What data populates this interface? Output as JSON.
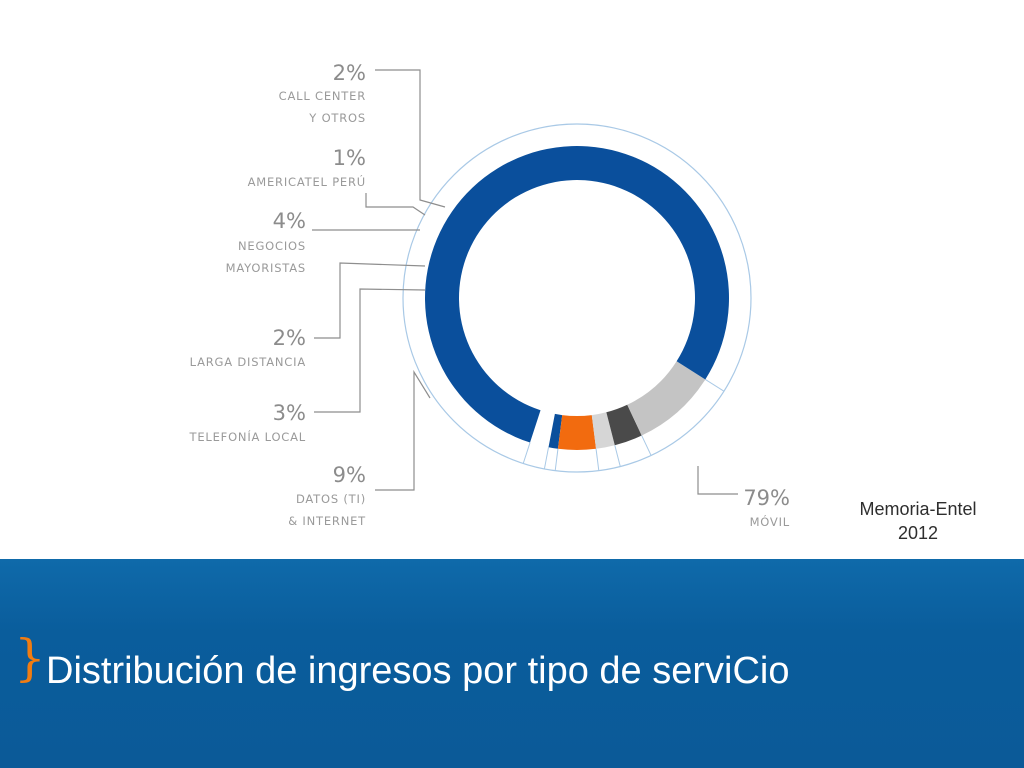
{
  "slide": {
    "title": "Distribución de ingresos por tipo de serviCio",
    "source_line1": "Memoria-Entel",
    "source_line2": "2012",
    "brace_glyph": "}"
  },
  "colors": {
    "banner": "#0b5c9b",
    "accent_brace": "#f07c12",
    "ring_outline": "#a9c9e6"
  },
  "chart_data": {
    "type": "pie",
    "style": "donut",
    "slices": [
      {
        "value_label": "2%",
        "value": 2,
        "label_lines": [
          "CALL CENTER",
          "Y OTROS"
        ],
        "color": "#ffffff"
      },
      {
        "value_label": "1%",
        "value": 1,
        "label_lines": [
          "AMERICATEL PERÚ"
        ],
        "color": "#0a4f9c"
      },
      {
        "value_label": "4%",
        "value": 4,
        "label_lines": [
          "NEGOCIOS",
          "MAYORISTAS"
        ],
        "color": "#f26b0f"
      },
      {
        "value_label": "2%",
        "value": 2,
        "label_lines": [
          "LARGA DISTANCIA"
        ],
        "color": "#d6d6d6"
      },
      {
        "value_label": "3%",
        "value": 3,
        "label_lines": [
          "TELEFONÍA LOCAL"
        ],
        "color": "#4a4a4a"
      },
      {
        "value_label": "9%",
        "value": 9,
        "label_lines": [
          "DATOS (TI)",
          "& INTERNET"
        ],
        "color": "#c4c4c4"
      },
      {
        "value_label": "79%",
        "value": 79,
        "label_lines": [
          "MÓVIL"
        ],
        "color": "#0a4f9c"
      }
    ]
  }
}
